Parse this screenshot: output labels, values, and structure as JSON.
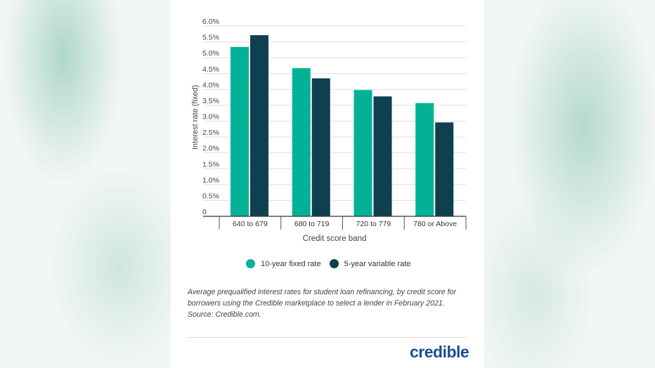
{
  "chart_data": {
    "type": "bar",
    "categories": [
      "640 to 679",
      "680 to 719",
      "720 to 779",
      "780 or Above"
    ],
    "series": [
      {
        "name": "10-year fixed rate",
        "color": "#03b296",
        "values": [
          5.34,
          4.67,
          3.98,
          3.57
        ]
      },
      {
        "name": "5-year variable rate",
        "color": "#0e404f",
        "values": [
          5.71,
          4.35,
          3.78,
          2.96
        ]
      }
    ],
    "xlabel": "Credit score band",
    "ylabel": "Interest rate (fixed)",
    "ylim": [
      0,
      6.0
    ],
    "yticks": [
      "0",
      "0.5%",
      "1.0%",
      "1.5%",
      "2.0%",
      "2.5%",
      "3.0%",
      "3.5%",
      "4.0%",
      "4.5%",
      "5.0%",
      "5.5%",
      "6.0%"
    ],
    "grid": true,
    "legend": "bottom"
  },
  "caption": "Average prequalified interest rates for student loan refinancing, by credit score for borrowers using the Credible marketplace to select a lender in February 2021. Source: Credible.com.",
  "logo": "credible"
}
